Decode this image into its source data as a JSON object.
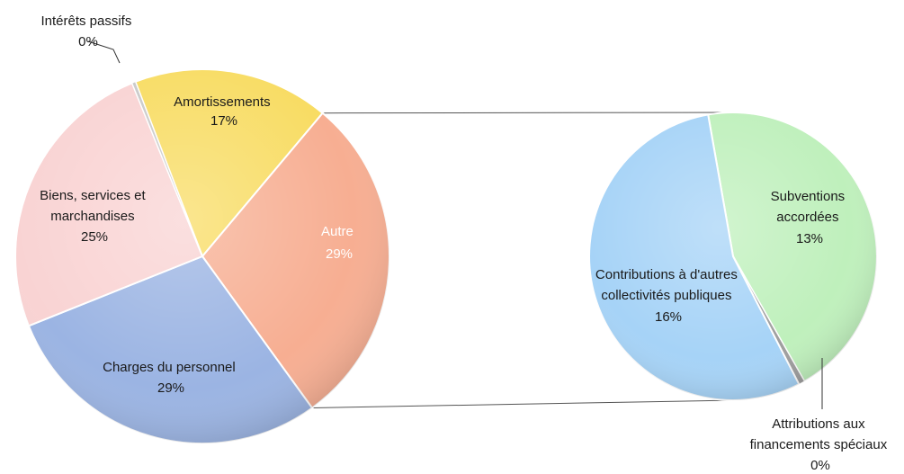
{
  "chart_data": {
    "type": "pie-of-pie",
    "main_pie": {
      "slices": [
        {
          "label": "Amortissements",
          "value_label": "17%",
          "value": 17,
          "color": "#F8DC63"
        },
        {
          "label": "Autre",
          "value_label": "29%",
          "value": 29,
          "color": "#F7AE92",
          "label_color": "#ffffff"
        },
        {
          "label": "Charges du personnel",
          "value_label": "29%",
          "value": 29,
          "color": "#9BB4E3"
        },
        {
          "label": "Biens, services et marchandises",
          "value_label": "25%",
          "value": 25,
          "color": "#F9D3D3"
        },
        {
          "label": "Intérêts passifs",
          "value_label": "0%",
          "value": 0.3,
          "color": "#C9C9C9"
        }
      ]
    },
    "secondary_pie": {
      "slices": [
        {
          "label": "Subventions accordées",
          "value_label": "13%",
          "value": 13,
          "color": "#BFF0BC"
        },
        {
          "label": "Attributions aux financements spéciaux",
          "value_label": "0%",
          "value": 0.2,
          "color": "#9E9E9E"
        },
        {
          "label": "Contributions à d'autres collectivités publiques",
          "value_label": "16%",
          "value": 16,
          "color": "#A6D3F7"
        }
      ]
    }
  }
}
